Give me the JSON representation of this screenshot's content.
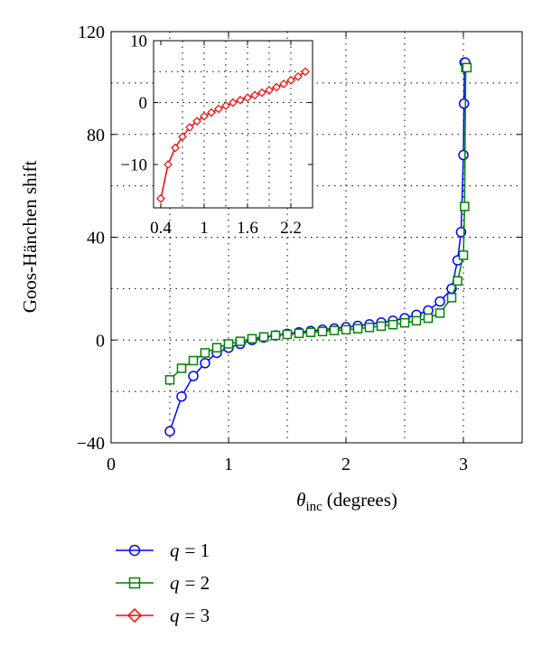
{
  "chart_data": [
    {
      "type": "line",
      "xlabel": "θinc (degrees)",
      "xlabel_symbol": "θ",
      "xlabel_sub": "inc",
      "xlabel_unit": "(degrees)",
      "ylabel": "Goos-Hänchen shift",
      "xlim": [
        0,
        3.5
      ],
      "ylim": [
        -40,
        120
      ],
      "xticks": [
        0,
        1,
        2,
        3
      ],
      "yticks": [
        -40,
        0,
        40,
        80,
        120
      ],
      "xtick_labels": [
        "0",
        "1",
        "2",
        "3"
      ],
      "ytick_labels": [
        "−40",
        "0",
        "40",
        "80",
        "120"
      ],
      "grid": true,
      "legend_position": "below",
      "series": [
        {
          "name": "q = 1",
          "legend_var": "q",
          "legend_val": "= 1",
          "color": "#0000ff",
          "marker": "circle",
          "x": [
            0.5,
            0.6,
            0.7,
            0.8,
            0.9,
            1.0,
            1.1,
            1.2,
            1.3,
            1.4,
            1.5,
            1.6,
            1.7,
            1.8,
            1.9,
            2.0,
            2.1,
            2.2,
            2.3,
            2.4,
            2.5,
            2.6,
            2.7,
            2.8,
            2.9,
            2.95,
            2.98,
            3.0,
            3.005,
            3.01,
            3.015
          ],
          "y": [
            -35.5,
            -22,
            -14,
            -9,
            -5,
            -3,
            -1.5,
            0,
            1,
            1.8,
            2.4,
            3,
            3.5,
            4,
            4.5,
            5,
            5.5,
            6.1,
            6.8,
            7.5,
            8.5,
            9.8,
            11.5,
            15,
            20,
            31,
            42,
            72,
            92,
            108,
            108
          ]
        },
        {
          "name": "q = 2",
          "legend_var": "q",
          "legend_val": "= 2",
          "color": "#008000",
          "marker": "square",
          "x": [
            0.5,
            0.6,
            0.7,
            0.8,
            0.9,
            1.0,
            1.1,
            1.2,
            1.3,
            1.4,
            1.5,
            1.6,
            1.7,
            1.8,
            1.9,
            2.0,
            2.1,
            2.2,
            2.3,
            2.4,
            2.5,
            2.6,
            2.7,
            2.8,
            2.9,
            2.95,
            3.0,
            3.01,
            3.02,
            3.03
          ],
          "y": [
            -15.5,
            -11,
            -8,
            -5,
            -3,
            -1.5,
            -0.5,
            0.5,
            1.2,
            1.8,
            2.2,
            2.6,
            3,
            3.3,
            3.7,
            4,
            4.4,
            4.9,
            5.4,
            6,
            6.7,
            7.5,
            8.5,
            10.5,
            16.5,
            23,
            33,
            52,
            106,
            106
          ]
        }
      ]
    },
    {
      "type": "line",
      "role": "inset",
      "xlim": [
        0.3,
        2.5
      ],
      "ylim": [
        -17,
        10
      ],
      "xticks": [
        0.4,
        1,
        1.6,
        2.2
      ],
      "yticks": [
        -10,
        0,
        10
      ],
      "xtick_labels": [
        "0.4",
        "1",
        "1.6",
        "2.2"
      ],
      "ytick_labels": [
        "−10",
        "0",
        "10"
      ],
      "grid": true,
      "series": [
        {
          "name": "q = 3",
          "legend_var": "q",
          "legend_val": "= 3",
          "color": "#ff0000",
          "marker": "diamond",
          "x": [
            0.4,
            0.5,
            0.6,
            0.7,
            0.8,
            0.9,
            1.0,
            1.1,
            1.2,
            1.3,
            1.4,
            1.5,
            1.6,
            1.7,
            1.8,
            1.9,
            2.0,
            2.1,
            2.2,
            2.3,
            2.4
          ],
          "y": [
            -15.5,
            -10,
            -7.3,
            -5.5,
            -4,
            -3,
            -2.2,
            -1.6,
            -1,
            -0.5,
            0,
            0.4,
            0.8,
            1.2,
            1.6,
            2,
            2.5,
            3,
            3.6,
            4.2,
            5
          ]
        }
      ]
    }
  ]
}
